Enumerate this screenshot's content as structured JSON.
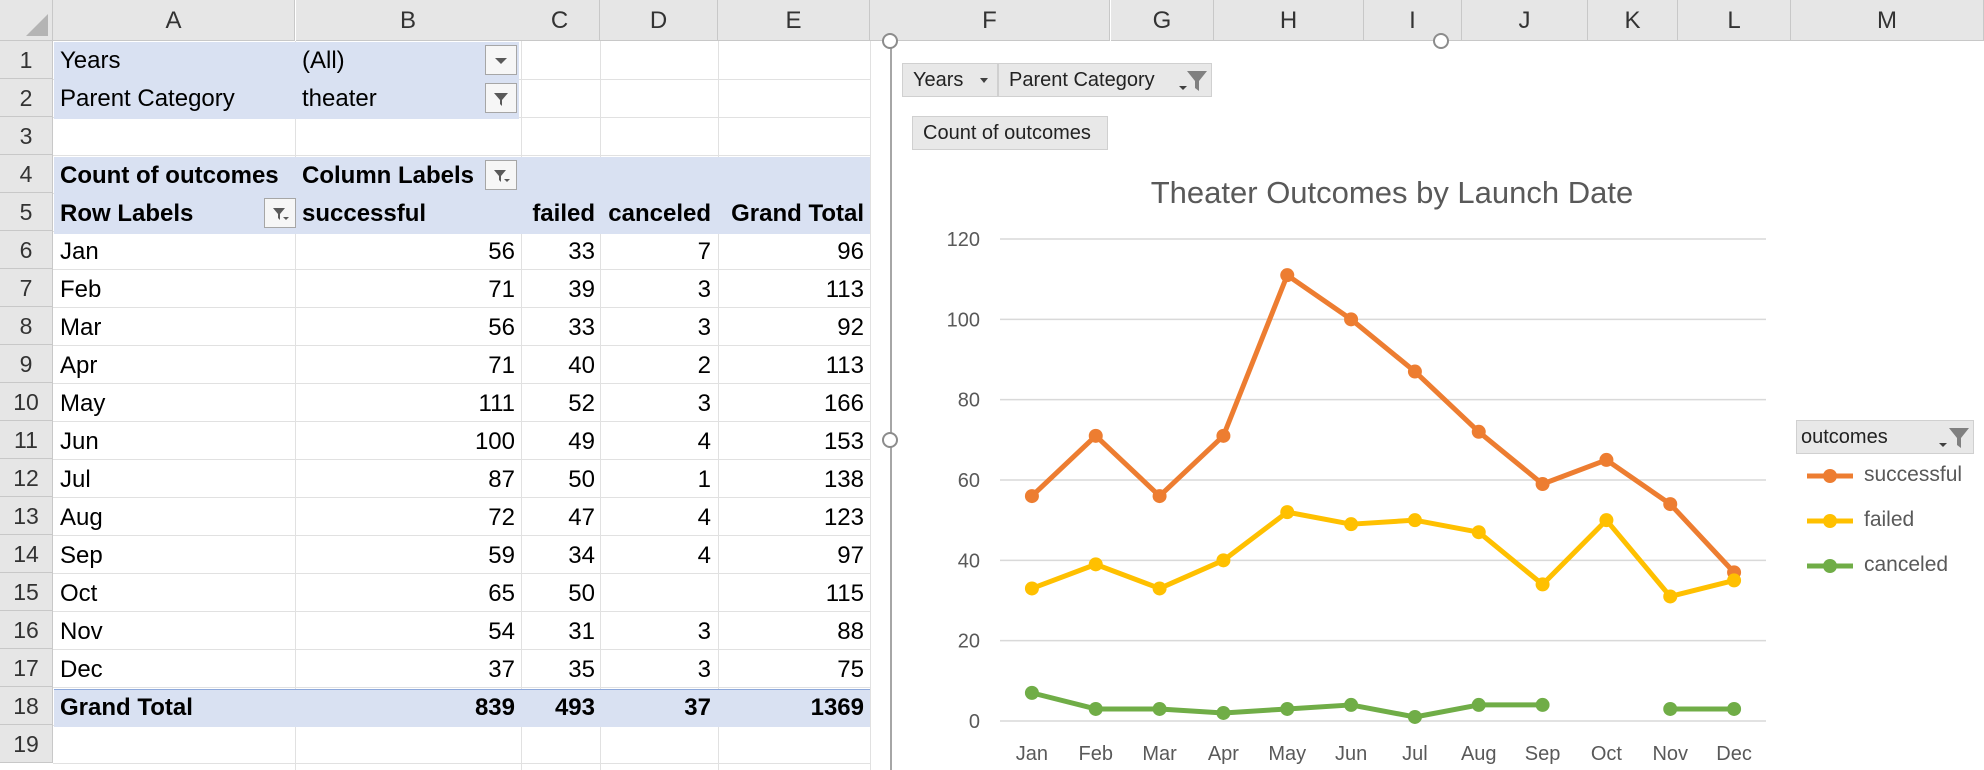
{
  "columns": [
    "A",
    "B",
    "C",
    "D",
    "E",
    "F",
    "G",
    "H",
    "I",
    "J",
    "K",
    "L",
    "M"
  ],
  "rows": [
    "1",
    "2",
    "3",
    "4",
    "5",
    "6",
    "7",
    "8",
    "9",
    "10",
    "11",
    "12",
    "13",
    "14",
    "15",
    "16",
    "17",
    "18",
    "19"
  ],
  "filters": {
    "years_label": "Years",
    "years_value": "(All)",
    "parent_label": "Parent Category",
    "parent_value": "theater"
  },
  "pivot": {
    "corner_label": "Count of outcomes",
    "column_labels": "Column Labels",
    "row_labels": "Row Labels",
    "headers": [
      "successful",
      "failed",
      "canceled",
      "Grand Total"
    ],
    "rows": [
      {
        "label": "Jan",
        "successful": "56",
        "failed": "33",
        "canceled": "7",
        "total": "96"
      },
      {
        "label": "Feb",
        "successful": "71",
        "failed": "39",
        "canceled": "3",
        "total": "113"
      },
      {
        "label": "Mar",
        "successful": "56",
        "failed": "33",
        "canceled": "3",
        "total": "92"
      },
      {
        "label": "Apr",
        "successful": "71",
        "failed": "40",
        "canceled": "2",
        "total": "113"
      },
      {
        "label": "May",
        "successful": "111",
        "failed": "52",
        "canceled": "3",
        "total": "166"
      },
      {
        "label": "Jun",
        "successful": "100",
        "failed": "49",
        "canceled": "4",
        "total": "153"
      },
      {
        "label": "Jul",
        "successful": "87",
        "failed": "50",
        "canceled": "1",
        "total": "138"
      },
      {
        "label": "Aug",
        "successful": "72",
        "failed": "47",
        "canceled": "4",
        "total": "123"
      },
      {
        "label": "Sep",
        "successful": "59",
        "failed": "34",
        "canceled": "4",
        "total": "97"
      },
      {
        "label": "Oct",
        "successful": "65",
        "failed": "50",
        "canceled": "",
        "total": "115"
      },
      {
        "label": "Nov",
        "successful": "54",
        "failed": "31",
        "canceled": "3",
        "total": "88"
      },
      {
        "label": "Dec",
        "successful": "37",
        "failed": "35",
        "canceled": "3",
        "total": "75"
      }
    ],
    "grand_total": {
      "label": "Grand Total",
      "successful": "839",
      "failed": "493",
      "canceled": "37",
      "total": "1369"
    }
  },
  "chart_buttons": {
    "years": "Years",
    "parent_category": "Parent Category",
    "count_of_outcomes": "Count of outcomes",
    "legend_field": "outcomes"
  },
  "colors": {
    "successful": "#ed7d31",
    "failed": "#ffc000",
    "canceled": "#70ad47",
    "pivot_band": "#d9e1f2"
  },
  "chart_data": {
    "type": "line",
    "title": "Theater Outcomes by Launch Date",
    "categories": [
      "Jan",
      "Feb",
      "Mar",
      "Apr",
      "May",
      "Jun",
      "Jul",
      "Aug",
      "Sep",
      "Oct",
      "Nov",
      "Dec"
    ],
    "series": [
      {
        "name": "successful",
        "values": [
          56,
          71,
          56,
          71,
          111,
          100,
          87,
          72,
          59,
          65,
          54,
          37
        ]
      },
      {
        "name": "failed",
        "values": [
          33,
          39,
          33,
          40,
          52,
          49,
          50,
          47,
          34,
          50,
          31,
          35
        ]
      },
      {
        "name": "canceled",
        "values": [
          7,
          3,
          3,
          2,
          3,
          4,
          1,
          4,
          4,
          null,
          3,
          3
        ]
      }
    ],
    "ylim": [
      0,
      120
    ],
    "yticks": [
      0,
      20,
      40,
      60,
      80,
      100,
      120
    ],
    "grid": true,
    "legend": "right"
  }
}
